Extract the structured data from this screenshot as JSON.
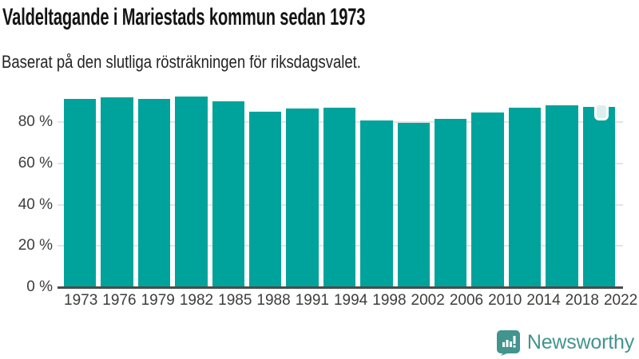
{
  "header": {
    "title": "Valdeltagande i Mariestads kommun sedan 1973",
    "subtitle": "Baserat på den slutliga rösträkningen för riksdagsvalet."
  },
  "chart_data": {
    "type": "bar",
    "title": "Valdeltagande i Mariestads kommun sedan 1973",
    "subtitle": "Baserat på den slutliga rösträkningen för riksdagsvalet.",
    "categories": [
      "1973",
      "1976",
      "1979",
      "1982",
      "1985",
      "1988",
      "1991",
      "1994",
      "1998",
      "2002",
      "2006",
      "2010",
      "2014",
      "2018",
      "2022"
    ],
    "values": [
      90.8,
      91.8,
      91.1,
      92.0,
      90.0,
      84.9,
      86.5,
      86.7,
      80.7,
      79.4,
      81.5,
      84.5,
      86.6,
      88.0,
      87.1
    ],
    "unit": "%",
    "xlabel": "",
    "ylabel": "",
    "yticks": [
      0,
      20,
      40,
      60,
      80
    ],
    "ytick_suffix": " %",
    "ylim": [
      0,
      96
    ],
    "grid": true,
    "legend": "none",
    "bar_color": "#00a39b",
    "highlight": {
      "category": "2022",
      "marker": "rounded-square",
      "marker_fill": "#dcefee",
      "marker_border": "#ffffff"
    }
  },
  "colors": {
    "background": "#ffffff",
    "title_text": "#141414",
    "subtitle_text": "#232323",
    "axis_text": "#3d3d3d",
    "gridline": "#e4e4e4",
    "baseline": "#4b4b4b",
    "bar": "#00a39b",
    "brand": "#43948e"
  },
  "footer": {
    "brand": "Newsworthy",
    "logo_icon": "speech-bubble-bar-chart-icon"
  }
}
